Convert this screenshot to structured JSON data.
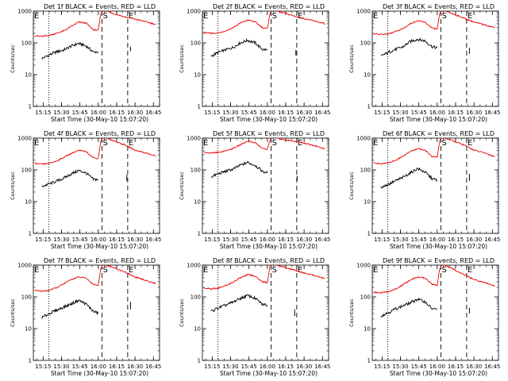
{
  "colors": {
    "events": "#000000",
    "lld": "#ee0000",
    "axes": "#000000"
  },
  "chart_data": [
    {
      "type": "line",
      "title": "Det 1f BLACK = Events, RED = LLD",
      "xlabel": "Start Time (30-May-10 15:07:20)",
      "ylabel": "Counts/sec",
      "yscale": "log",
      "ylim": [
        1,
        1000
      ],
      "xticks": [
        "15:15",
        "15:30",
        "15:45",
        "16:00",
        "16:15",
        "16:30",
        "16:45"
      ],
      "yticks": [
        "1",
        "10",
        "100",
        "1000"
      ],
      "markers": [
        "E",
        "S",
        "E"
      ],
      "series": [
        {
          "name": "BLACK = Events",
          "x": [
            "15:14",
            "15:20",
            "15:26",
            "15:32",
            "15:38",
            "15:44",
            "15:50",
            "15:56",
            "16:00",
            "16:25",
            "16:26"
          ],
          "values": [
            32,
            42,
            52,
            60,
            80,
            96,
            80,
            52,
            52,
            55,
            75
          ]
        },
        {
          "name": "RED = LLD",
          "x": [
            "15:08",
            "15:14",
            "15:20",
            "15:26",
            "15:32",
            "15:38",
            "15:44",
            "15:50",
            "15:56",
            "16:00",
            "16:02",
            "16:04",
            "16:10",
            "16:22",
            "16:30",
            "16:40",
            "16:47"
          ],
          "values": [
            165,
            160,
            172,
            200,
            240,
            330,
            450,
            420,
            260,
            250,
            800,
            1100,
            900,
            650,
            560,
            450,
            380
          ]
        }
      ]
    },
    {
      "type": "line",
      "title": "Det 2f BLACK = Events, RED = LLD",
      "xlabel": "Start Time (30-May-10 15:07:20)",
      "ylabel": "Counts/sec",
      "yscale": "log",
      "ylim": [
        1,
        1000
      ],
      "xticks": [
        "15:15",
        "15:30",
        "15:45",
        "16:00",
        "16:15",
        "16:30",
        "16:45"
      ],
      "yticks": [
        "1",
        "10",
        "100",
        "1000"
      ],
      "markers": [
        "E",
        "S",
        "E"
      ],
      "series": [
        {
          "name": "BLACK = Events",
          "x": [
            "15:14",
            "15:20",
            "15:26",
            "15:32",
            "15:38",
            "15:44",
            "15:50",
            "15:56",
            "16:00",
            "16:22",
            "16:23"
          ],
          "values": [
            38,
            50,
            60,
            72,
            100,
            120,
            100,
            62,
            60,
            40,
            60
          ]
        },
        {
          "name": "RED = LLD",
          "x": [
            "15:08",
            "15:14",
            "15:20",
            "15:26",
            "15:32",
            "15:38",
            "15:44",
            "15:50",
            "15:56",
            "16:00",
            "16:02",
            "16:04",
            "16:10",
            "16:22",
            "16:30",
            "16:40",
            "16:47"
          ],
          "values": [
            210,
            200,
            205,
            240,
            300,
            420,
            520,
            460,
            300,
            280,
            800,
            1100,
            950,
            700,
            580,
            470,
            400
          ]
        }
      ]
    },
    {
      "type": "line",
      "title": "Det 3f BLACK = Events, RED = LLD",
      "xlabel": "Start Time (30-May-10 15:07:20)",
      "ylabel": "Counts/sec",
      "yscale": "log",
      "ylim": [
        1,
        1000
      ],
      "xticks": [
        "15:15",
        "15:30",
        "15:45",
        "16:00",
        "16:15",
        "16:30",
        "16:45"
      ],
      "yticks": [
        "1",
        "10",
        "100",
        "1000"
      ],
      "markers": [
        "E",
        "S",
        "E"
      ],
      "series": [
        {
          "name": "BLACK = Events",
          "x": [
            "15:14",
            "15:20",
            "15:26",
            "15:32",
            "15:38",
            "15:44",
            "15:50",
            "15:56",
            "16:00",
            "16:25",
            "16:26"
          ],
          "values": [
            38,
            50,
            62,
            75,
            110,
            130,
            115,
            75,
            70,
            45,
            70
          ]
        },
        {
          "name": "RED = LLD",
          "x": [
            "15:08",
            "15:14",
            "15:20",
            "15:26",
            "15:32",
            "15:38",
            "15:44",
            "15:50",
            "15:56",
            "16:00",
            "16:02",
            "16:04",
            "16:10",
            "16:22",
            "16:30",
            "16:40",
            "16:47"
          ],
          "values": [
            190,
            185,
            190,
            225,
            280,
            400,
            500,
            440,
            290,
            270,
            800,
            1100,
            900,
            600,
            450,
            360,
            300
          ]
        }
      ]
    },
    {
      "type": "line",
      "title": "Det 4f BLACK = Events, RED = LLD",
      "xlabel": "Start Time (30-May-10 15:07:20)",
      "ylabel": "Counts/sec",
      "yscale": "log",
      "ylim": [
        1,
        1000
      ],
      "xticks": [
        "15:15",
        "15:30",
        "15:45",
        "16:00",
        "16:15",
        "16:30",
        "16:45"
      ],
      "yticks": [
        "1",
        "10",
        "100",
        "1000"
      ],
      "markers": [
        "E",
        "S",
        "E"
      ],
      "series": [
        {
          "name": "BLACK = Events",
          "x": [
            "15:14",
            "15:20",
            "15:26",
            "15:32",
            "15:38",
            "15:44",
            "15:50",
            "15:56",
            "16:00",
            "16:22",
            "16:23"
          ],
          "values": [
            30,
            36,
            44,
            55,
            75,
            95,
            80,
            50,
            50,
            45,
            70
          ]
        },
        {
          "name": "RED = LLD",
          "x": [
            "15:08",
            "15:14",
            "15:20",
            "15:26",
            "15:32",
            "15:38",
            "15:44",
            "15:50",
            "15:56",
            "16:00",
            "16:02",
            "16:04",
            "16:10",
            "16:22",
            "16:30",
            "16:40",
            "16:47"
          ],
          "values": [
            160,
            150,
            160,
            190,
            250,
            330,
            410,
            380,
            240,
            230,
            800,
            1100,
            900,
            600,
            420,
            330,
            270
          ]
        }
      ]
    },
    {
      "type": "line",
      "title": "Det 5f BLACK = Events, RED = LLD",
      "xlabel": "Start Time (30-May-10 15:07:20)",
      "ylabel": "Counts/sec",
      "yscale": "log",
      "ylim": [
        1,
        1000
      ],
      "xticks": [
        "15:15",
        "15:30",
        "15:45",
        "16:00",
        "16:15",
        "16:30",
        "16:45"
      ],
      "yticks": [
        "1",
        "10",
        "100",
        "1000"
      ],
      "markers": [
        "E",
        "S",
        "E"
      ],
      "series": [
        {
          "name": "BLACK = Events",
          "x": [
            "15:14",
            "15:20",
            "15:26",
            "15:32",
            "15:38",
            "15:44",
            "15:50",
            "15:56",
            "16:00",
            "16:23",
            "16:24"
          ],
          "values": [
            60,
            75,
            90,
            105,
            140,
            170,
            140,
            90,
            80,
            45,
            65
          ]
        },
        {
          "name": "RED = LLD",
          "x": [
            "15:08",
            "15:14",
            "15:20",
            "15:26",
            "15:32",
            "15:38",
            "15:44",
            "15:50",
            "15:56",
            "16:00",
            "16:02",
            "16:04",
            "16:10",
            "16:22",
            "16:30",
            "16:40",
            "16:47"
          ],
          "values": [
            360,
            340,
            355,
            400,
            470,
            620,
            800,
            720,
            470,
            440,
            850,
            1100,
            950,
            800,
            700,
            560,
            450
          ]
        }
      ]
    },
    {
      "type": "line",
      "title": "Det 6f BLACK = Events, RED = LLD",
      "xlabel": "Start Time (30-May-10 15:07:20)",
      "ylabel": "Counts/sec",
      "yscale": "log",
      "ylim": [
        1,
        1000
      ],
      "xticks": [
        "15:15",
        "15:30",
        "15:45",
        "16:00",
        "16:15",
        "16:30",
        "16:45"
      ],
      "yticks": [
        "1",
        "10",
        "100",
        "1000"
      ],
      "markers": [
        "E",
        "S",
        "E"
      ],
      "series": [
        {
          "name": "BLACK = Events",
          "x": [
            "15:14",
            "15:20",
            "15:26",
            "15:32",
            "15:38",
            "15:44",
            "15:50",
            "15:56",
            "16:00",
            "16:25",
            "16:26"
          ],
          "values": [
            28,
            35,
            45,
            58,
            80,
            110,
            85,
            52,
            48,
            45,
            75
          ]
        },
        {
          "name": "RED = LLD",
          "x": [
            "15:08",
            "15:14",
            "15:20",
            "15:26",
            "15:32",
            "15:38",
            "15:44",
            "15:50",
            "15:56",
            "16:00",
            "16:02",
            "16:04",
            "16:10",
            "16:22",
            "16:30",
            "16:40",
            "16:47"
          ],
          "values": [
            165,
            155,
            165,
            200,
            270,
            380,
            470,
            420,
            260,
            250,
            800,
            1100,
            900,
            600,
            420,
            330,
            260
          ]
        }
      ]
    },
    {
      "type": "line",
      "title": "Det 7f BLACK = Events, RED = LLD",
      "xlabel": "Start Time (30-May-10 15:07:20)",
      "ylabel": "Counts/sec",
      "yscale": "log",
      "ylim": [
        1,
        1000
      ],
      "xticks": [
        "15:15",
        "15:30",
        "15:45",
        "16:00",
        "16:15",
        "16:30",
        "16:45"
      ],
      "yticks": [
        "1",
        "10",
        "100",
        "1000"
      ],
      "markers": [
        "E",
        "S",
        "E"
      ],
      "series": [
        {
          "name": "BLACK = Events",
          "x": [
            "15:14",
            "15:20",
            "15:26",
            "15:32",
            "15:38",
            "15:44",
            "15:50",
            "15:56",
            "16:00",
            "16:25",
            "16:26"
          ],
          "values": [
            22,
            30,
            38,
            48,
            60,
            78,
            60,
            35,
            30,
            40,
            70
          ]
        },
        {
          "name": "RED = LLD",
          "x": [
            "15:08",
            "15:14",
            "15:20",
            "15:26",
            "15:32",
            "15:38",
            "15:44",
            "15:50",
            "15:56",
            "16:00",
            "16:02",
            "16:04",
            "16:10",
            "16:22",
            "16:30",
            "16:40",
            "16:47"
          ],
          "values": [
            160,
            150,
            160,
            195,
            260,
            350,
            420,
            390,
            250,
            230,
            800,
            1100,
            900,
            600,
            420,
            320,
            260
          ]
        }
      ]
    },
    {
      "type": "line",
      "title": "Det 8f BLACK = Events, RED = LLD",
      "xlabel": "Start Time (30-May-10 15:07:20)",
      "ylabel": "Counts/sec",
      "yscale": "log",
      "ylim": [
        1,
        1000
      ],
      "xticks": [
        "15:15",
        "15:30",
        "15:45",
        "16:00",
        "16:15",
        "16:30",
        "16:45"
      ],
      "yticks": [
        "1",
        "10",
        "100",
        "1000"
      ],
      "markers": [
        "E",
        "S",
        "E"
      ],
      "series": [
        {
          "name": "BLACK = Events",
          "x": [
            "15:14",
            "15:20",
            "15:26",
            "15:32",
            "15:38",
            "15:44",
            "15:50",
            "15:56",
            "16:00",
            "16:21",
            "16:22"
          ],
          "values": [
            35,
            45,
            55,
            68,
            90,
            110,
            90,
            58,
            55,
            25,
            40
          ]
        },
        {
          "name": "RED = LLD",
          "x": [
            "15:08",
            "15:14",
            "15:20",
            "15:26",
            "15:32",
            "15:38",
            "15:44",
            "15:50",
            "15:56",
            "16:00",
            "16:02",
            "16:04",
            "16:10",
            "16:22",
            "16:30",
            "16:40",
            "16:47"
          ],
          "values": [
            190,
            180,
            190,
            225,
            290,
            400,
            500,
            450,
            300,
            280,
            850,
            1100,
            950,
            700,
            560,
            450,
            380
          ]
        }
      ]
    },
    {
      "type": "line",
      "title": "Det 9f BLACK = Events, RED = LLD",
      "xlabel": "Start Time (30-May-10 15:07:20)",
      "ylabel": "Counts/sec",
      "yscale": "log",
      "ylim": [
        1,
        1000
      ],
      "xticks": [
        "15:15",
        "15:30",
        "15:45",
        "16:00",
        "16:15",
        "16:30",
        "16:45"
      ],
      "yticks": [
        "1",
        "10",
        "100",
        "1000"
      ],
      "markers": [
        "E",
        "S",
        "E"
      ],
      "series": [
        {
          "name": "BLACK = Events",
          "x": [
            "15:14",
            "15:20",
            "15:26",
            "15:32",
            "15:38",
            "15:44",
            "15:50",
            "15:56",
            "16:00",
            "16:25",
            "16:26"
          ],
          "values": [
            25,
            32,
            42,
            52,
            65,
            85,
            70,
            42,
            40,
            30,
            45
          ]
        },
        {
          "name": "RED = LLD",
          "x": [
            "15:08",
            "15:14",
            "15:20",
            "15:26",
            "15:32",
            "15:38",
            "15:44",
            "15:50",
            "15:56",
            "16:00",
            "16:02",
            "16:04",
            "16:10",
            "16:22",
            "16:30",
            "16:40",
            "16:47"
          ],
          "values": [
            140,
            135,
            145,
            175,
            240,
            340,
            420,
            390,
            250,
            230,
            750,
            1050,
            850,
            500,
            350,
            270,
            220
          ]
        }
      ]
    }
  ]
}
